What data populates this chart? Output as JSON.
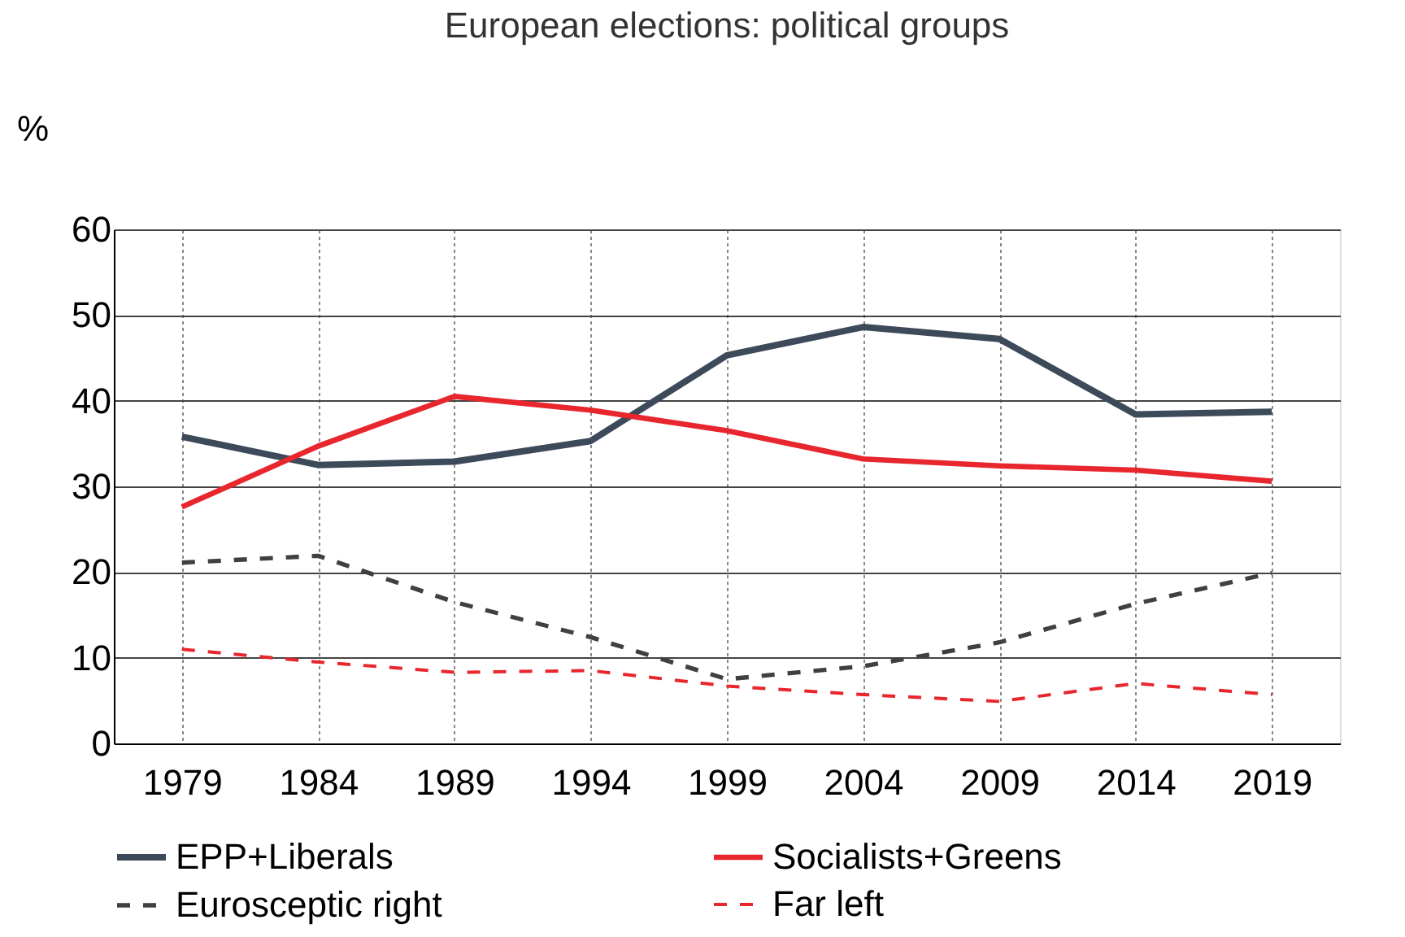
{
  "chart_data": {
    "type": "line",
    "title": "European elections: political groups",
    "ylabel": "%",
    "categories": [
      "1979",
      "1984",
      "1989",
      "1994",
      "1999",
      "2004",
      "2009",
      "2014",
      "2019"
    ],
    "ylim": [
      0,
      60
    ],
    "yticks": [
      0,
      10,
      20,
      30,
      40,
      50,
      60
    ],
    "grid": true,
    "legend": "bottom",
    "marker": "none",
    "series": [
      {
        "name": "EPP+Liberals",
        "color": "#3d4a5a",
        "line_style": "solid",
        "values": [
          35.8,
          32.5,
          32.9,
          35.3,
          45.3,
          48.6,
          47.2,
          38.4,
          38.7
        ]
      },
      {
        "name": "Socialists+Greens",
        "color": "#e8262e",
        "line_style": "solid",
        "values": [
          27.6,
          34.7,
          40.5,
          38.9,
          36.5,
          33.2,
          32.4,
          31.9,
          30.6
        ]
      },
      {
        "name": "Eurosceptic right",
        "color": "#404040",
        "line_style": "dashed",
        "values": [
          21.1,
          21.9,
          16.5,
          12.4,
          7.5,
          9.0,
          11.8,
          16.3,
          19.9
        ]
      },
      {
        "name": "Far left",
        "color": "#e8262e",
        "line_style": "dashed",
        "values": [
          11.0,
          9.5,
          8.3,
          8.5,
          6.7,
          5.7,
          4.9,
          7.0,
          5.7
        ]
      }
    ]
  }
}
